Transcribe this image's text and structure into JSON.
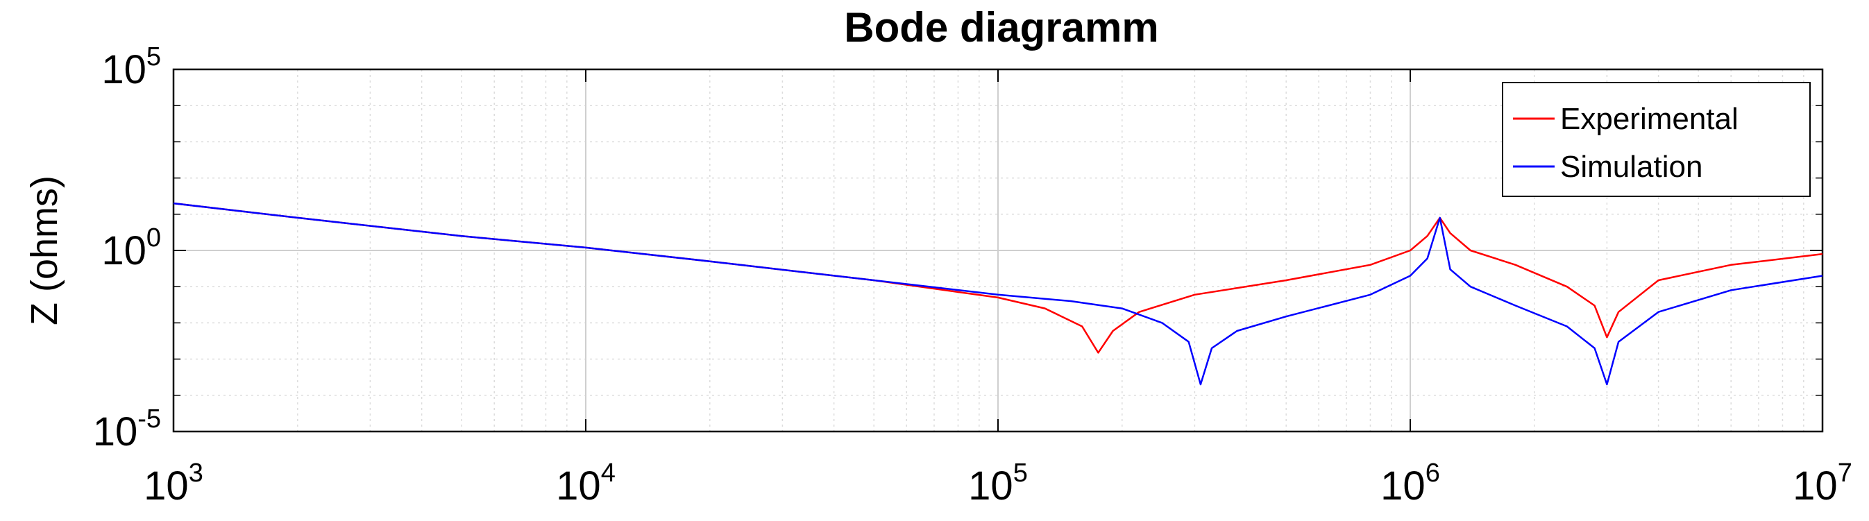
{
  "chart_data": {
    "type": "line",
    "title": "Bode diagramm",
    "xlabel": "",
    "ylabel": "Z (ohms)",
    "xscale": "log",
    "yscale": "log",
    "xlim": [
      1000,
      10000000
    ],
    "ylim": [
      1e-05,
      100000
    ],
    "grid": true,
    "minor_grid": true,
    "legend_position": "top-right",
    "x_ticks": [
      {
        "base": "10",
        "exp": "3",
        "value": 1000
      },
      {
        "base": "10",
        "exp": "4",
        "value": 10000
      },
      {
        "base": "10",
        "exp": "5",
        "value": 100000
      },
      {
        "base": "10",
        "exp": "6",
        "value": 1000000
      },
      {
        "base": "10",
        "exp": "7",
        "value": 10000000
      }
    ],
    "y_ticks": [
      {
        "base": "10",
        "exp": "-5",
        "value": 1e-05
      },
      {
        "base": "10",
        "exp": "0",
        "value": 1
      },
      {
        "base": "10",
        "exp": "5",
        "value": 100000
      }
    ],
    "series": [
      {
        "name": "Experimental",
        "color": "#ff0000",
        "x": [
          1000,
          2000,
          5000,
          10000,
          20000,
          50000,
          100000,
          130000,
          160000,
          175000,
          190000,
          220000,
          300000,
          500000,
          800000,
          1000000,
          1100000,
          1180000,
          1250000,
          1400000,
          1800000,
          2400000,
          2800000,
          3000000,
          3200000,
          4000000,
          6000000,
          10000000
        ],
        "y": [
          20,
          8,
          2.5,
          1.2,
          0.5,
          0.15,
          0.05,
          0.025,
          0.008,
          0.0015,
          0.006,
          0.02,
          0.06,
          0.15,
          0.4,
          1,
          2.5,
          8,
          3,
          1,
          0.4,
          0.1,
          0.03,
          0.004,
          0.02,
          0.15,
          0.4,
          0.8
        ]
      },
      {
        "name": "Simulation",
        "color": "#0000ff",
        "x": [
          1000,
          2000,
          5000,
          10000,
          20000,
          50000,
          100000,
          150000,
          200000,
          250000,
          290000,
          310000,
          330000,
          380000,
          500000,
          800000,
          1000000,
          1100000,
          1180000,
          1250000,
          1400000,
          1800000,
          2400000,
          2800000,
          3000000,
          3200000,
          4000000,
          6000000,
          10000000
        ],
        "y": [
          20,
          8,
          2.5,
          1.2,
          0.5,
          0.15,
          0.06,
          0.04,
          0.025,
          0.01,
          0.003,
          0.0002,
          0.002,
          0.006,
          0.015,
          0.06,
          0.2,
          0.6,
          8,
          0.3,
          0.1,
          0.03,
          0.008,
          0.002,
          0.0002,
          0.003,
          0.02,
          0.08,
          0.2
        ]
      }
    ]
  }
}
